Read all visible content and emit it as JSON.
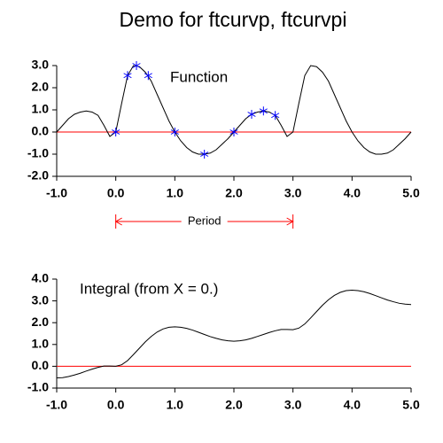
{
  "chart_data": [
    {
      "type": "line",
      "title": "Demo for ftcurvp, ftcurvpi",
      "annotation": "Function",
      "x": [
        -1,
        -0.9,
        -0.8,
        -0.7,
        -0.6,
        -0.5,
        -0.4,
        -0.3,
        -0.2,
        -0.1,
        0,
        0.1,
        0.2,
        0.3,
        0.4,
        0.5,
        0.6,
        0.7,
        0.8,
        0.9,
        1,
        1.1,
        1.2,
        1.3,
        1.4,
        1.5,
        1.6,
        1.7,
        1.8,
        1.9,
        2,
        2.1,
        2.2,
        2.3,
        2.4,
        2.5,
        2.6,
        2.7,
        2.8,
        2.9,
        3,
        3.1,
        3.2,
        3.3,
        3.4,
        3.5,
        3.6,
        3.7,
        3.8,
        3.9,
        4,
        4.1,
        4.2,
        4.3,
        4.4,
        4.5,
        4.6,
        4.7,
        4.8,
        4.9,
        5
      ],
      "values": [
        0,
        0.3,
        0.6,
        0.8,
        0.9,
        0.95,
        0.9,
        0.75,
        0.3,
        -0.2,
        0,
        1.3,
        2.55,
        3.0,
        2.95,
        2.7,
        2.3,
        1.7,
        1.1,
        0.5,
        0,
        -0.4,
        -0.7,
        -0.9,
        -1.0,
        -1.0,
        -0.95,
        -0.8,
        -0.55,
        -0.3,
        0,
        0.3,
        0.6,
        0.8,
        0.9,
        0.95,
        0.9,
        0.75,
        0.3,
        -0.2,
        0,
        1.3,
        2.55,
        3.0,
        2.95,
        2.7,
        2.3,
        1.7,
        1.1,
        0.5,
        0,
        -0.4,
        -0.7,
        -0.9,
        -1.0,
        -1.0,
        -0.95,
        -0.8,
        -0.55,
        -0.3,
        0
      ],
      "color": "#000000",
      "points": {
        "x": [
          0,
          0.2,
          0.35,
          0.55,
          1.0,
          1.5,
          2.0,
          2.3,
          2.5,
          2.7
        ],
        "values": [
          0,
          2.55,
          3.0,
          2.55,
          0,
          -1.0,
          0,
          0.8,
          0.95,
          0.75
        ],
        "color": "#0000ff"
      },
      "hline": 0,
      "hline_color": "#ff0000",
      "period": {
        "label": "Period",
        "start": 0,
        "end": 3,
        "color": "#ff0000"
      },
      "xlim": [
        -1,
        5
      ],
      "xticks": [
        {
          "value": -1,
          "label": "-1.0"
        },
        {
          "value": 0,
          "label": "0.0"
        },
        {
          "value": 1,
          "label": "1.0"
        },
        {
          "value": 2,
          "label": "2.0"
        },
        {
          "value": 3,
          "label": "3.0"
        },
        {
          "value": 4,
          "label": "4.0"
        },
        {
          "value": 5,
          "label": "5.0"
        }
      ],
      "ylim": [
        -2,
        3
      ],
      "yticks": [
        {
          "value": -2,
          "label": "-2.0"
        },
        {
          "value": -1,
          "label": "-1.0"
        },
        {
          "value": 0,
          "label": "0.0"
        },
        {
          "value": 1,
          "label": "1.0"
        },
        {
          "value": 2,
          "label": "2.0"
        },
        {
          "value": 3,
          "label": "3.0"
        }
      ]
    },
    {
      "type": "line",
      "annotation": "Integral (from X = 0.)",
      "x": [
        -1,
        -0.9,
        -0.8,
        -0.7,
        -0.6,
        -0.5,
        -0.4,
        -0.3,
        -0.2,
        -0.1,
        0,
        0.1,
        0.2,
        0.3,
        0.4,
        0.5,
        0.6,
        0.7,
        0.8,
        0.9,
        1,
        1.1,
        1.2,
        1.3,
        1.4,
        1.5,
        1.6,
        1.7,
        1.8,
        1.9,
        2,
        2.1,
        2.2,
        2.3,
        2.4,
        2.5,
        2.6,
        2.7,
        2.8,
        2.9,
        3,
        3.1,
        3.2,
        3.3,
        3.4,
        3.5,
        3.6,
        3.7,
        3.8,
        3.9,
        4,
        4.1,
        4.2,
        4.3,
        4.4,
        4.5,
        4.6,
        4.7,
        4.8,
        4.9,
        5
      ],
      "values": [
        -0.53,
        -0.52,
        -0.47,
        -0.4,
        -0.32,
        -0.22,
        -0.13,
        -0.05,
        0.01,
        0.01,
        0,
        0.07,
        0.26,
        0.54,
        0.83,
        1.12,
        1.37,
        1.57,
        1.71,
        1.79,
        1.81,
        1.79,
        1.74,
        1.66,
        1.56,
        1.46,
        1.36,
        1.28,
        1.21,
        1.17,
        1.15,
        1.17,
        1.21,
        1.28,
        1.37,
        1.46,
        1.55,
        1.63,
        1.69,
        1.69,
        1.68,
        1.75,
        1.94,
        2.22,
        2.51,
        2.8,
        3.05,
        3.25,
        3.39,
        3.47,
        3.49,
        3.47,
        3.42,
        3.34,
        3.24,
        3.14,
        3.04,
        2.96,
        2.89,
        2.85,
        2.83
      ],
      "color": "#000000",
      "hline": 0,
      "hline_color": "#ff0000",
      "xlim": [
        -1,
        5
      ],
      "xticks": [
        {
          "value": -1,
          "label": "-1.0"
        },
        {
          "value": 0,
          "label": "0.0"
        },
        {
          "value": 1,
          "label": "1.0"
        },
        {
          "value": 2,
          "label": "2.0"
        },
        {
          "value": 3,
          "label": "3.0"
        },
        {
          "value": 4,
          "label": "4.0"
        },
        {
          "value": 5,
          "label": "5.0"
        }
      ],
      "ylim": [
        -1,
        4
      ],
      "yticks": [
        {
          "value": -1,
          "label": "-1.0"
        },
        {
          "value": 0,
          "label": "0.0"
        },
        {
          "value": 1,
          "label": "1.0"
        },
        {
          "value": 2,
          "label": "2.0"
        },
        {
          "value": 3,
          "label": "3.0"
        },
        {
          "value": 4,
          "label": "4.0"
        }
      ]
    }
  ]
}
